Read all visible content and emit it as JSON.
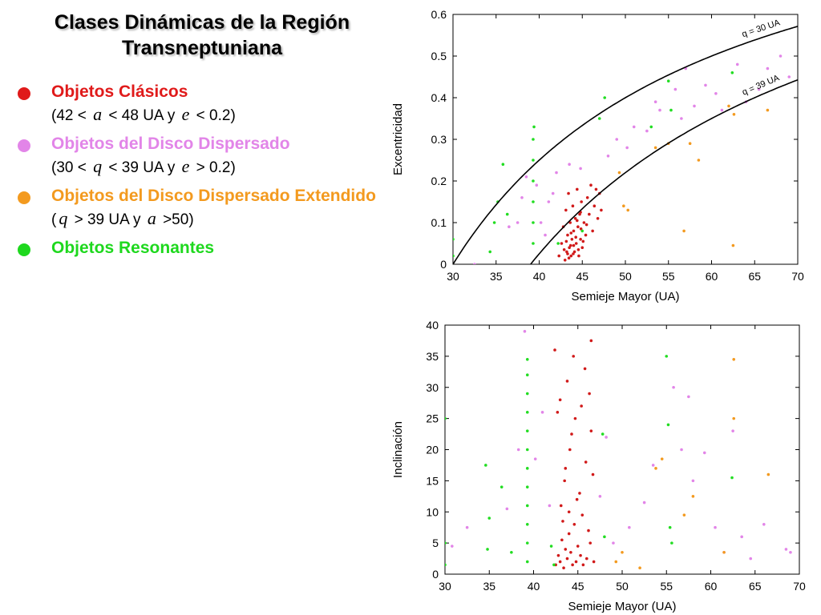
{
  "title_lines": [
    "Clases Dinámicas de la Región",
    "Transneptuniana"
  ],
  "colors": {
    "classic": "#e01a1a",
    "scattered": "#e285e8",
    "extended": "#f39a1f",
    "resonant": "#1ed81e",
    "classic_points": "#d11a1a",
    "scattered_points": "#e285e8",
    "extended_points": "#f39a1f",
    "resonant_points": "#22dd22",
    "curve": "#000000"
  },
  "legend": [
    {
      "label": "Objetos Clásicos",
      "color_key": "classic",
      "cond": {
        "a": "(42 < ",
        "b": "a",
        "c": " < 48 UA y ",
        "d": "e",
        "e": " < 0.2)"
      }
    },
    {
      "label": "Objetos del Disco Dispersado",
      "color_key": "scattered",
      "cond": {
        "a": "(30 < ",
        "b": "q",
        "c": " < 39 UA y ",
        "d": "e",
        "e": " > 0.2)"
      }
    },
    {
      "label": "Objetos del Disco Dispersado Extendido",
      "color_key": "extended",
      "cond": {
        "a": "(",
        "b": "q",
        "c": " > 39 UA y ",
        "d": "a",
        "e": " >50)"
      }
    },
    {
      "label": "Objetos Resonantes",
      "color_key": "resonant",
      "cond": null
    }
  ],
  "chart_data": [
    {
      "type": "scatter",
      "xlabel": "Semieje Mayor (UA)",
      "ylabel": "Excentricidad",
      "xlim": [
        30,
        70
      ],
      "ylim": [
        0,
        0.6
      ],
      "xticks": [
        30,
        35,
        40,
        45,
        50,
        55,
        60,
        65,
        70
      ],
      "yticks": [
        0,
        0.1,
        0.2,
        0.3,
        0.4,
        0.5,
        0.6
      ],
      "ytick_labels": [
        "0",
        "0.1",
        "0.2",
        "0.3",
        "0.4",
        "0.5",
        "0.6"
      ],
      "grid": false,
      "curves": [
        {
          "label": "q = 30 UA",
          "q": 30
        },
        {
          "label": "q = 39 UA",
          "q": 39
        }
      ],
      "series": [
        {
          "class": "classic",
          "points": [
            [
              42.3,
              0.02
            ],
            [
              42.6,
              0.05
            ],
            [
              42.8,
              0.09
            ],
            [
              43.0,
              0.01
            ],
            [
              43.1,
              0.13
            ],
            [
              43.2,
              0.03
            ],
            [
              43.3,
              0.07
            ],
            [
              43.4,
              0.17
            ],
            [
              43.5,
              0.04
            ],
            [
              43.6,
              0.1
            ],
            [
              43.7,
              0.02
            ],
            [
              43.8,
              0.06
            ],
            [
              43.9,
              0.14
            ],
            [
              44.0,
              0.08
            ],
            [
              44.1,
              0.03
            ],
            [
              44.2,
              0.11
            ],
            [
              44.3,
              0.05
            ],
            [
              44.4,
              0.18
            ],
            [
              44.5,
              0.09
            ],
            [
              44.6,
              0.02
            ],
            [
              44.7,
              0.12
            ],
            [
              44.8,
              0.06
            ],
            [
              44.9,
              0.15
            ],
            [
              45.0,
              0.04
            ],
            [
              45.2,
              0.1
            ],
            [
              45.4,
              0.07
            ],
            [
              45.6,
              0.16
            ],
            [
              45.8,
              0.12
            ],
            [
              46.0,
              0.19
            ],
            [
              46.2,
              0.08
            ],
            [
              46.4,
              0.14
            ],
            [
              46.6,
              0.18
            ],
            [
              46.8,
              0.11
            ],
            [
              47.0,
              0.17
            ],
            [
              47.2,
              0.13
            ],
            [
              42.9,
              0.035
            ],
            [
              43.15,
              0.055
            ],
            [
              43.45,
              0.015
            ],
            [
              43.65,
              0.045
            ],
            [
              43.95,
              0.025
            ],
            [
              44.25,
              0.065
            ],
            [
              44.55,
              0.035
            ],
            [
              44.85,
              0.085
            ],
            [
              45.1,
              0.055
            ],
            [
              45.5,
              0.095
            ],
            [
              43.3,
              0.025
            ],
            [
              43.7,
              0.075
            ],
            [
              44.0,
              0.045
            ],
            [
              44.4,
              0.105
            ],
            [
              44.8,
              0.125
            ]
          ]
        },
        {
          "class": "scattered",
          "points": [
            [
              32.5,
              0.0
            ],
            [
              36.5,
              0.09
            ],
            [
              37.5,
              0.1
            ],
            [
              38.0,
              0.16
            ],
            [
              38.5,
              0.21
            ],
            [
              39.7,
              0.19
            ],
            [
              40.2,
              0.1
            ],
            [
              40.7,
              0.07
            ],
            [
              41.1,
              0.15
            ],
            [
              41.6,
              0.17
            ],
            [
              42.0,
              0.22
            ],
            [
              43.5,
              0.24
            ],
            [
              44.8,
              0.23
            ],
            [
              48.0,
              0.26
            ],
            [
              49.0,
              0.3
            ],
            [
              50.2,
              0.28
            ],
            [
              51.0,
              0.33
            ],
            [
              52.5,
              0.32
            ],
            [
              53.5,
              0.39
            ],
            [
              54.0,
              0.37
            ],
            [
              55.8,
              0.42
            ],
            [
              56.5,
              0.35
            ],
            [
              57.0,
              0.47
            ],
            [
              58.0,
              0.38
            ],
            [
              59.3,
              0.43
            ],
            [
              60.5,
              0.41
            ],
            [
              61.2,
              0.37
            ],
            [
              63.0,
              0.48
            ],
            [
              64.0,
              0.39
            ],
            [
              65.5,
              0.42
            ],
            [
              66.5,
              0.47
            ],
            [
              68.0,
              0.5
            ],
            [
              69.0,
              0.45
            ]
          ]
        },
        {
          "class": "extended",
          "points": [
            [
              49.3,
              0.22
            ],
            [
              49.8,
              0.14
            ],
            [
              50.3,
              0.13
            ],
            [
              53.5,
              0.28
            ],
            [
              55.0,
              0.29
            ],
            [
              56.8,
              0.08
            ],
            [
              57.5,
              0.29
            ],
            [
              58.5,
              0.25
            ],
            [
              62.0,
              0.38
            ],
            [
              62.6,
              0.36
            ],
            [
              62.5,
              0.045
            ],
            [
              66.5,
              0.37
            ]
          ]
        },
        {
          "class": "resonant",
          "points": [
            [
              30.0,
              0.02
            ],
            [
              30.0,
              0.06
            ],
            [
              34.3,
              0.03
            ],
            [
              34.8,
              0.1
            ],
            [
              35.2,
              0.15
            ],
            [
              35.8,
              0.24
            ],
            [
              36.3,
              0.12
            ],
            [
              39.3,
              0.05
            ],
            [
              39.3,
              0.1
            ],
            [
              39.3,
              0.15
            ],
            [
              39.3,
              0.2
            ],
            [
              39.3,
              0.25
            ],
            [
              39.3,
              0.3
            ],
            [
              39.4,
              0.33
            ],
            [
              42.2,
              0.05
            ],
            [
              45.0,
              0.08
            ],
            [
              47.0,
              0.35
            ],
            [
              47.6,
              0.4
            ],
            [
              53.0,
              0.33
            ],
            [
              55.0,
              0.44
            ],
            [
              55.3,
              0.37
            ],
            [
              62.4,
              0.46
            ]
          ]
        }
      ]
    },
    {
      "type": "scatter",
      "xlabel": "Semieje Mayor (UA)",
      "ylabel": "Inclinación",
      "xlim": [
        30,
        70
      ],
      "ylim": [
        0,
        40
      ],
      "xticks": [
        30,
        35,
        40,
        45,
        50,
        55,
        60,
        65,
        70
      ],
      "yticks": [
        0,
        5,
        10,
        15,
        20,
        25,
        30,
        35,
        40
      ],
      "ytick_labels": [
        "0",
        "5",
        "10",
        "15",
        "20",
        "25",
        "30",
        "35",
        "40"
      ],
      "grid": false,
      "series": [
        {
          "class": "classic",
          "points": [
            [
              42.5,
              1.5
            ],
            [
              42.8,
              3.0
            ],
            [
              43.0,
              2.0
            ],
            [
              43.2,
              5.5
            ],
            [
              43.4,
              1.0
            ],
            [
              43.6,
              4.0
            ],
            [
              43.8,
              2.5
            ],
            [
              44.0,
              6.5
            ],
            [
              44.2,
              3.5
            ],
            [
              44.4,
              1.5
            ],
            [
              44.6,
              8.0
            ],
            [
              44.8,
              2.0
            ],
            [
              45.0,
              4.5
            ],
            [
              45.3,
              3.0
            ],
            [
              45.6,
              1.5
            ],
            [
              46.0,
              2.5
            ],
            [
              46.4,
              5.0
            ],
            [
              46.8,
              2.0
            ],
            [
              43.1,
              11.0
            ],
            [
              43.5,
              15.0
            ],
            [
              44.1,
              20.0
            ],
            [
              44.7,
              25.0
            ],
            [
              45.2,
              13.0
            ],
            [
              45.9,
              18.0
            ],
            [
              46.5,
              23.0
            ],
            [
              43.0,
              28.0
            ],
            [
              43.8,
              31.0
            ],
            [
              44.5,
              35.0
            ],
            [
              45.8,
              33.0
            ],
            [
              46.3,
              29.0
            ],
            [
              42.4,
              36.0
            ],
            [
              46.5,
              37.5
            ],
            [
              43.3,
              8.5
            ],
            [
              44.0,
              10.0
            ],
            [
              44.9,
              12.0
            ],
            [
              45.5,
              9.5
            ],
            [
              46.2,
              7.0
            ],
            [
              43.6,
              17.0
            ],
            [
              44.3,
              22.5
            ],
            [
              45.4,
              27.0
            ],
            [
              42.7,
              26.0
            ],
            [
              46.7,
              16.0
            ]
          ]
        },
        {
          "class": "scattered",
          "points": [
            [
              30.8,
              4.5
            ],
            [
              32.5,
              7.5
            ],
            [
              37.0,
              10.5
            ],
            [
              38.3,
              20.0
            ],
            [
              39.0,
              39.0
            ],
            [
              40.2,
              18.5
            ],
            [
              41.0,
              26.0
            ],
            [
              41.8,
              11.0
            ],
            [
              47.5,
              12.5
            ],
            [
              48.2,
              22.0
            ],
            [
              49.0,
              5.0
            ],
            [
              50.8,
              7.5
            ],
            [
              52.5,
              11.5
            ],
            [
              53.5,
              17.5
            ],
            [
              55.8,
              30.0
            ],
            [
              56.7,
              20.0
            ],
            [
              57.5,
              28.5
            ],
            [
              58.0,
              15.0
            ],
            [
              59.3,
              19.5
            ],
            [
              60.5,
              7.5
            ],
            [
              61.5,
              3.5
            ],
            [
              62.5,
              23.0
            ],
            [
              63.5,
              6.0
            ],
            [
              64.5,
              2.5
            ],
            [
              66.0,
              8.0
            ],
            [
              68.5,
              4.0
            ],
            [
              69.0,
              3.5
            ]
          ]
        },
        {
          "class": "extended",
          "points": [
            [
              49.3,
              2.0
            ],
            [
              50.0,
              3.5
            ],
            [
              52.0,
              1.0
            ],
            [
              53.8,
              17.0
            ],
            [
              54.5,
              18.5
            ],
            [
              57.0,
              9.5
            ],
            [
              58.0,
              12.5
            ],
            [
              61.5,
              3.5
            ],
            [
              62.6,
              25.0
            ],
            [
              62.6,
              34.5
            ],
            [
              66.5,
              16.0
            ]
          ]
        },
        {
          "class": "resonant",
          "points": [
            [
              30.0,
              1.5
            ],
            [
              30.0,
              5.0
            ],
            [
              30.0,
              25.0
            ],
            [
              34.6,
              17.5
            ],
            [
              34.8,
              4.0
            ],
            [
              35.0,
              9.0
            ],
            [
              36.4,
              14.0
            ],
            [
              37.5,
              3.5
            ],
            [
              39.3,
              2.0
            ],
            [
              39.3,
              5.0
            ],
            [
              39.3,
              8.0
            ],
            [
              39.3,
              11.0
            ],
            [
              39.3,
              14.0
            ],
            [
              39.3,
              17.0
            ],
            [
              39.3,
              20.0
            ],
            [
              39.3,
              23.0
            ],
            [
              39.3,
              26.0
            ],
            [
              39.3,
              29.0
            ],
            [
              39.3,
              32.0
            ],
            [
              39.3,
              34.5
            ],
            [
              42.3,
              1.5
            ],
            [
              42.0,
              4.5
            ],
            [
              47.8,
              22.5
            ],
            [
              48.0,
              6.0
            ],
            [
              55.0,
              35.0
            ],
            [
              55.2,
              24.0
            ],
            [
              55.4,
              7.5
            ],
            [
              55.6,
              5.0
            ],
            [
              62.4,
              15.5
            ]
          ]
        }
      ]
    }
  ]
}
